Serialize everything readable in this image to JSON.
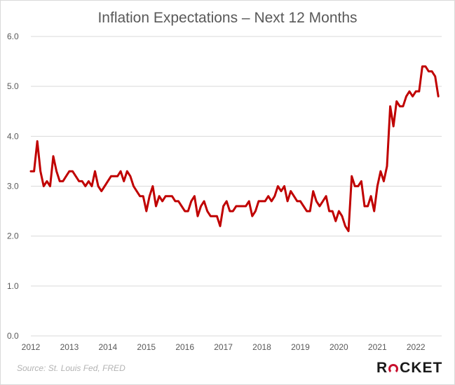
{
  "chart_data": {
    "type": "line",
    "title": "Inflation Expectations – Next 12 Months",
    "xlabel": "",
    "ylabel": "",
    "x_ticks": [
      "2012",
      "2013",
      "2014",
      "2015",
      "2016",
      "2017",
      "2018",
      "2019",
      "2020",
      "2021",
      "2022"
    ],
    "y_ticks": [
      "0.0",
      "1.0",
      "2.0",
      "3.0",
      "4.0",
      "5.0",
      "6.0"
    ],
    "xlim": [
      2012.0,
      2022.67
    ],
    "ylim": [
      0,
      6
    ],
    "grid": true,
    "legend": "none",
    "series": [
      {
        "color": "#c00000",
        "start": "2012-01",
        "frequency": "monthly",
        "values": [
          3.3,
          3.3,
          3.9,
          3.3,
          3.0,
          3.1,
          3.0,
          3.6,
          3.3,
          3.1,
          3.1,
          3.2,
          3.3,
          3.3,
          3.2,
          3.1,
          3.1,
          3.0,
          3.1,
          3.0,
          3.3,
          3.0,
          2.9,
          3.0,
          3.1,
          3.2,
          3.2,
          3.2,
          3.3,
          3.1,
          3.3,
          3.2,
          3.0,
          2.9,
          2.8,
          2.8,
          2.5,
          2.8,
          3.0,
          2.6,
          2.8,
          2.7,
          2.8,
          2.8,
          2.8,
          2.7,
          2.7,
          2.6,
          2.5,
          2.5,
          2.7,
          2.8,
          2.4,
          2.6,
          2.7,
          2.5,
          2.4,
          2.4,
          2.4,
          2.2,
          2.6,
          2.7,
          2.5,
          2.5,
          2.6,
          2.6,
          2.6,
          2.6,
          2.7,
          2.4,
          2.5,
          2.7,
          2.7,
          2.7,
          2.8,
          2.7,
          2.8,
          3.0,
          2.9,
          3.0,
          2.7,
          2.9,
          2.8,
          2.7,
          2.7,
          2.6,
          2.5,
          2.5,
          2.9,
          2.7,
          2.6,
          2.7,
          2.8,
          2.5,
          2.5,
          2.3,
          2.5,
          2.4,
          2.2,
          2.1,
          3.2,
          3.0,
          3.0,
          3.1,
          2.6,
          2.6,
          2.8,
          2.5,
          3.0,
          3.3,
          3.1,
          3.4,
          4.6,
          4.2,
          4.7,
          4.6,
          4.6,
          4.8,
          4.9,
          4.8,
          4.9,
          4.9,
          5.4,
          5.4,
          5.3,
          5.3,
          5.2,
          4.8
        ]
      }
    ]
  },
  "footer": {
    "source": "Source: St. Louis Fed, FRED",
    "logo_left": "R",
    "logo_right": "CKET"
  }
}
